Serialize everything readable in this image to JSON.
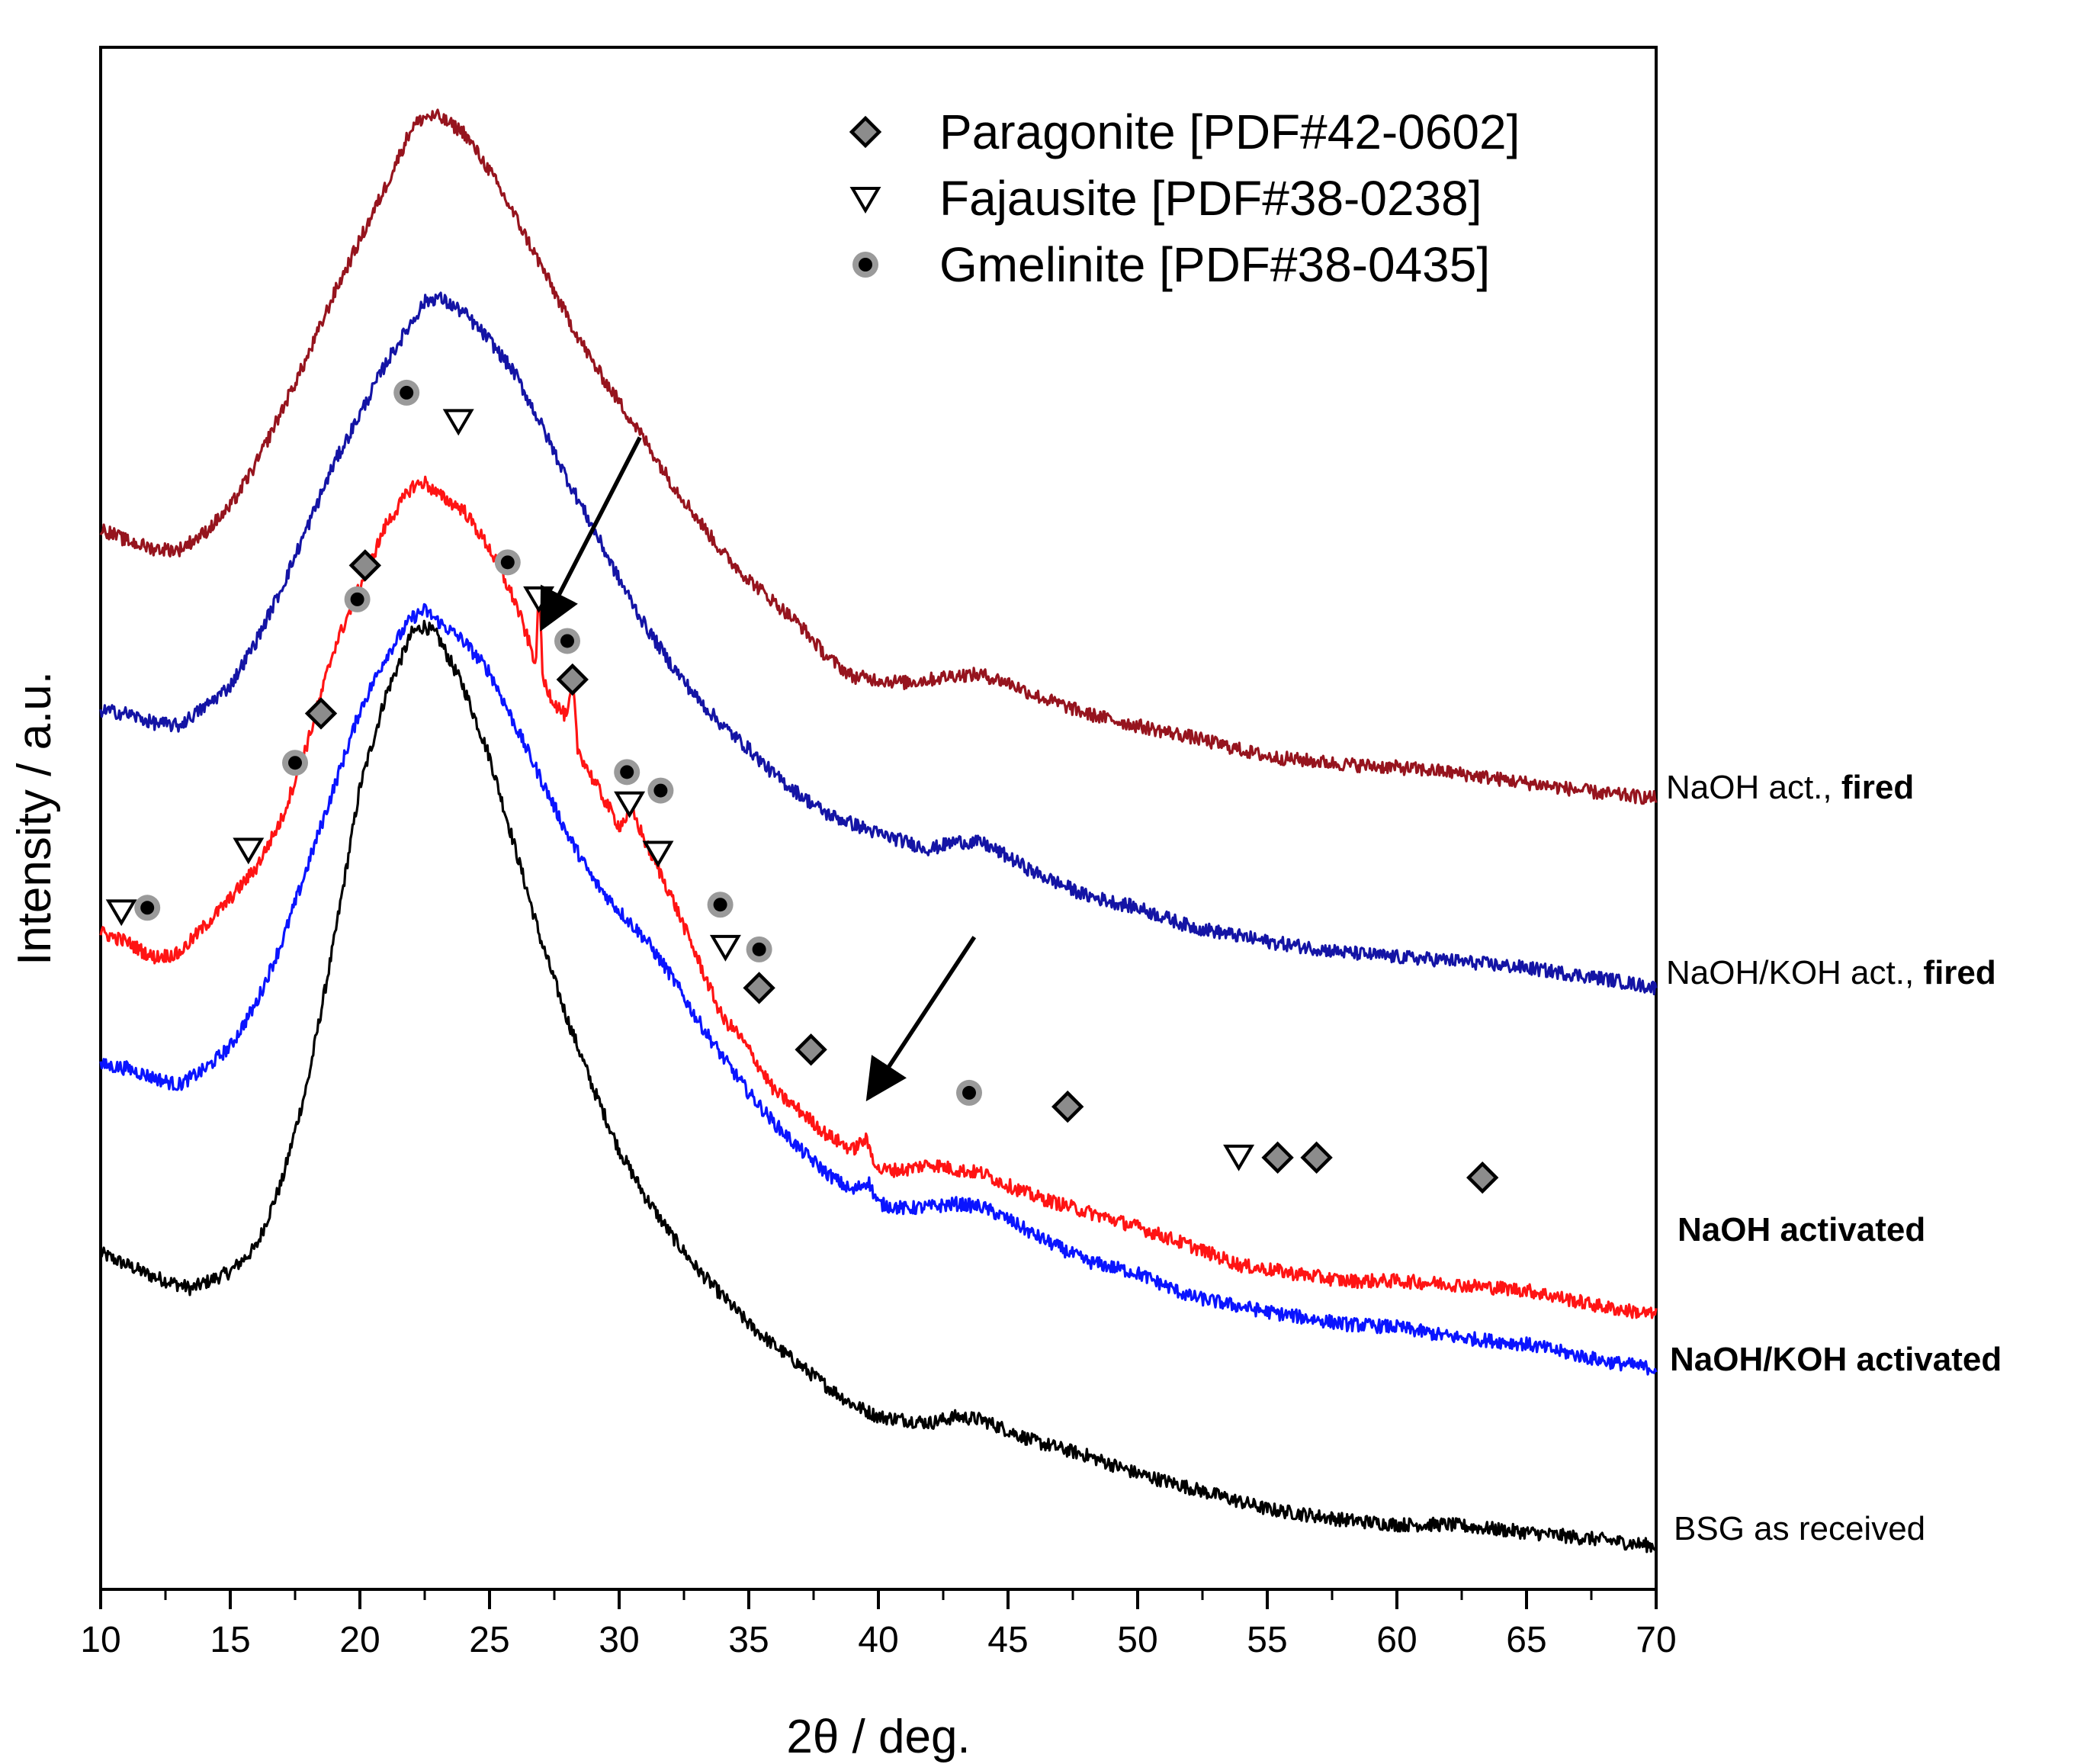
{
  "chart_data": {
    "type": "line",
    "title": "",
    "xlabel": "2θ / deg.",
    "ylabel": "Intensity / a.u.",
    "xlim": [
      10,
      70
    ],
    "ylim": [
      0,
      1000
    ],
    "xticks": [
      10,
      15,
      20,
      25,
      30,
      35,
      40,
      45,
      50,
      55,
      60,
      65,
      70
    ],
    "grid": false,
    "series": [
      {
        "name": "BSG as received",
        "label_parts": [
          {
            "text": "BSG as received",
            "bold": false
          }
        ],
        "color": "#000000",
        "points": [
          [
            10,
            218
          ],
          [
            12,
            203
          ],
          [
            13.5,
            195
          ],
          [
            15,
            206
          ],
          [
            16,
            222
          ],
          [
            17,
            265
          ],
          [
            18,
            330
          ],
          [
            19,
            420
          ],
          [
            20,
            520
          ],
          [
            21,
            580
          ],
          [
            22,
            620
          ],
          [
            22.5,
            625
          ],
          [
            23,
            618
          ],
          [
            24,
            585
          ],
          [
            25,
            540
          ],
          [
            26,
            480
          ],
          [
            27,
            420
          ],
          [
            28,
            370
          ],
          [
            29,
            325
          ],
          [
            30,
            285
          ],
          [
            31,
            255
          ],
          [
            32,
            230
          ],
          [
            33,
            208
          ],
          [
            34,
            190
          ],
          [
            35,
            172
          ],
          [
            36,
            158
          ],
          [
            37,
            145
          ],
          [
            38,
            132
          ],
          [
            39,
            120
          ],
          [
            40,
            112
          ],
          [
            41,
            110
          ],
          [
            42,
            108
          ],
          [
            43,
            112
          ],
          [
            44,
            110
          ],
          [
            45,
            103
          ],
          [
            46,
            96
          ],
          [
            48,
            87
          ],
          [
            50,
            75
          ],
          [
            52,
            66
          ],
          [
            55,
            52
          ],
          [
            58,
            45
          ],
          [
            60,
            42
          ],
          [
            62,
            42
          ],
          [
            65,
            37
          ],
          [
            68,
            32
          ],
          [
            70,
            28
          ]
        ]
      },
      {
        "name": "NaOH/KOH activated",
        "label_parts": [
          {
            "text": "NaOH/KOH activated",
            "bold": true
          }
        ],
        "color": "#0a14ff",
        "points": [
          [
            10,
            340
          ],
          [
            11,
            338
          ],
          [
            12,
            332
          ],
          [
            13,
            327
          ],
          [
            14,
            337
          ],
          [
            15,
            352
          ],
          [
            16,
            380
          ],
          [
            17,
            420
          ],
          [
            18,
            470
          ],
          [
            19,
            520
          ],
          [
            20,
            570
          ],
          [
            21,
            605
          ],
          [
            22,
            630
          ],
          [
            22.5,
            635
          ],
          [
            23,
            628
          ],
          [
            24,
            615
          ],
          [
            25,
            595
          ],
          [
            26,
            560
          ],
          [
            27,
            525
          ],
          [
            28,
            490
          ],
          [
            29,
            460
          ],
          [
            30,
            440
          ],
          [
            31,
            422
          ],
          [
            32,
            398
          ],
          [
            33,
            370
          ],
          [
            34,
            345
          ],
          [
            35,
            322
          ],
          [
            36,
            302
          ],
          [
            37,
            285
          ],
          [
            38,
            270
          ],
          [
            39,
            258
          ],
          [
            39.6,
            265
          ],
          [
            40,
            250
          ],
          [
            41,
            247
          ],
          [
            42,
            248
          ],
          [
            43,
            250
          ],
          [
            44,
            248
          ],
          [
            45,
            240
          ],
          [
            46,
            230
          ],
          [
            48,
            213
          ],
          [
            50,
            205
          ],
          [
            52,
            190
          ],
          [
            55,
            180
          ],
          [
            58,
            172
          ],
          [
            60,
            170
          ],
          [
            62,
            164
          ],
          [
            65,
            159
          ],
          [
            68,
            148
          ],
          [
            70,
            143
          ]
        ]
      },
      {
        "name": "NaOH activated",
        "label_parts": [
          {
            "text": "NaOH activated",
            "bold": true
          }
        ],
        "color": "#ff1414",
        "points": [
          [
            10,
            426
          ],
          [
            11,
            420
          ],
          [
            12,
            410
          ],
          [
            13,
            412
          ],
          [
            14,
            430
          ],
          [
            15,
            448
          ],
          [
            16,
            468
          ],
          [
            17,
            500
          ],
          [
            18,
            550
          ],
          [
            19,
            610
          ],
          [
            20,
            650
          ],
          [
            21,
            690
          ],
          [
            22,
            715
          ],
          [
            22.5,
            718
          ],
          [
            23,
            710
          ],
          [
            24,
            700
          ],
          [
            25,
            675
          ],
          [
            26,
            640
          ],
          [
            26.8,
            600
          ],
          [
            26.9,
            655
          ],
          [
            27.05,
            590
          ],
          [
            27.5,
            575
          ],
          [
            28,
            565
          ],
          [
            28.2,
            590
          ],
          [
            28.4,
            545
          ],
          [
            29,
            525
          ],
          [
            30,
            495
          ],
          [
            30.5,
            505
          ],
          [
            31,
            485
          ],
          [
            32,
            450
          ],
          [
            33,
            410
          ],
          [
            34,
            370
          ],
          [
            34.5,
            362
          ],
          [
            35,
            350
          ],
          [
            36,
            323
          ],
          [
            37,
            310
          ],
          [
            38,
            295
          ],
          [
            39,
            285
          ],
          [
            39.5,
            292
          ],
          [
            40,
            272
          ],
          [
            41,
            272
          ],
          [
            42,
            276
          ],
          [
            43,
            272
          ],
          [
            44,
            270
          ],
          [
            45,
            262
          ],
          [
            46,
            255
          ],
          [
            48,
            245
          ],
          [
            50,
            235
          ],
          [
            52,
            223
          ],
          [
            54,
            210
          ],
          [
            56,
            205
          ],
          [
            58,
            200
          ],
          [
            60,
            200
          ],
          [
            62,
            198
          ],
          [
            65,
            194
          ],
          [
            68,
            183
          ],
          [
            70,
            178
          ]
        ]
      },
      {
        "name": "NaOH/KOH act., fired",
        "label_parts": [
          {
            "text": "NaOH/KOH act., ",
            "bold": false
          },
          {
            "text": "fired",
            "bold": true
          }
        ],
        "color": "#1414a5",
        "points": [
          [
            10,
            570
          ],
          [
            11,
            568
          ],
          [
            12,
            562
          ],
          [
            13,
            560
          ],
          [
            14,
            572
          ],
          [
            15,
            586
          ],
          [
            16,
            615
          ],
          [
            17,
            650
          ],
          [
            18,
            690
          ],
          [
            19,
            730
          ],
          [
            20,
            762
          ],
          [
            21,
            795
          ],
          [
            22,
            822
          ],
          [
            22.5,
            835
          ],
          [
            23,
            838
          ],
          [
            24,
            828
          ],
          [
            25,
            810
          ],
          [
            26,
            788
          ],
          [
            27,
            755
          ],
          [
            28,
            720
          ],
          [
            29,
            688
          ],
          [
            30,
            655
          ],
          [
            31,
            625
          ],
          [
            32,
            600
          ],
          [
            33,
            578
          ],
          [
            34,
            560
          ],
          [
            35,
            545
          ],
          [
            36,
            528
          ],
          [
            37,
            515
          ],
          [
            38,
            503
          ],
          [
            40,
            490
          ],
          [
            42,
            480
          ],
          [
            43,
            485
          ],
          [
            44,
            484
          ],
          [
            45,
            475
          ],
          [
            46,
            465
          ],
          [
            48,
            450
          ],
          [
            50,
            442
          ],
          [
            52,
            430
          ],
          [
            55,
            420
          ],
          [
            58,
            413
          ],
          [
            60,
            410
          ],
          [
            62,
            408
          ],
          [
            65,
            403
          ],
          [
            68,
            396
          ],
          [
            70,
            390
          ]
        ]
      },
      {
        "name": "NaOH act., fired",
        "label_parts": [
          {
            "text": "NaOH act., ",
            "bold": false
          },
          {
            "text": "fired",
            "bold": true
          }
        ],
        "color": "#96141e",
        "points": [
          [
            10,
            688
          ],
          [
            11,
            680
          ],
          [
            12,
            675
          ],
          [
            13,
            674
          ],
          [
            14,
            685
          ],
          [
            15,
            702
          ],
          [
            16,
            730
          ],
          [
            17,
            765
          ],
          [
            18,
            800
          ],
          [
            19,
            840
          ],
          [
            20,
            875
          ],
          [
            21,
            910
          ],
          [
            22,
            948
          ],
          [
            22.5,
            955
          ],
          [
            23,
            955
          ],
          [
            24,
            945
          ],
          [
            25,
            920
          ],
          [
            26,
            890
          ],
          [
            27,
            858
          ],
          [
            28,
            825
          ],
          [
            29,
            795
          ],
          [
            30,
            770
          ],
          [
            31,
            745
          ],
          [
            32,
            718
          ],
          [
            33,
            695
          ],
          [
            34,
            672
          ],
          [
            35,
            655
          ],
          [
            36,
            640
          ],
          [
            37,
            625
          ],
          [
            38,
            605
          ],
          [
            39,
            592
          ],
          [
            40,
            590
          ],
          [
            41,
            588
          ],
          [
            42,
            590
          ],
          [
            43,
            593
          ],
          [
            44,
            593
          ],
          [
            45,
            588
          ],
          [
            46,
            580
          ],
          [
            48,
            568
          ],
          [
            50,
            560
          ],
          [
            52,
            553
          ],
          [
            55,
            540
          ],
          [
            58,
            535
          ],
          [
            60,
            533
          ],
          [
            62,
            530
          ],
          [
            65,
            523
          ],
          [
            68,
            516
          ],
          [
            70,
            513
          ]
        ]
      }
    ],
    "legend": [
      {
        "label": "Paragonite [PDF#42-0602]",
        "marker": "diamond"
      },
      {
        "label": "Fajausite [PDF#38-0238]",
        "marker": "triangle-down"
      },
      {
        "label": "Gmelinite [PDF#38-0435]",
        "marker": "circle"
      }
    ],
    "legend_location": "top",
    "phase_markers": [
      {
        "marker": "diamond",
        "points": [
          [
            18.5,
            568
          ],
          [
            20.2,
            664
          ],
          [
            28.2,
            590
          ],
          [
            35.4,
            390
          ],
          [
            37.4,
            350
          ],
          [
            47.3,
            313
          ],
          [
            55.4,
            280
          ],
          [
            56.9,
            280
          ],
          [
            63.3,
            267
          ]
        ]
      },
      {
        "marker": "triangle-down",
        "points": [
          [
            10.8,
            440
          ],
          [
            15.7,
            480
          ],
          [
            23.8,
            758
          ],
          [
            26.9,
            643
          ],
          [
            30.4,
            510
          ],
          [
            31.5,
            478
          ],
          [
            34.1,
            417
          ],
          [
            53.9,
            281
          ]
        ]
      },
      {
        "marker": "circle",
        "points": [
          [
            11.8,
            442
          ],
          [
            17.5,
            536
          ],
          [
            19.9,
            642
          ],
          [
            21.8,
            776
          ],
          [
            25.7,
            666
          ],
          [
            28,
            615
          ],
          [
            30.3,
            530
          ],
          [
            31.6,
            518
          ],
          [
            33.9,
            444
          ],
          [
            35.4,
            415
          ],
          [
            43.5,
            322
          ]
        ]
      }
    ],
    "annotations": [
      {
        "type": "arrow",
        "from": [
          30.8,
          747
        ],
        "to": [
          27.1,
          626
        ]
      },
      {
        "type": "arrow",
        "from": [
          43.7,
          423
        ],
        "to": [
          39.7,
          321
        ]
      }
    ]
  }
}
